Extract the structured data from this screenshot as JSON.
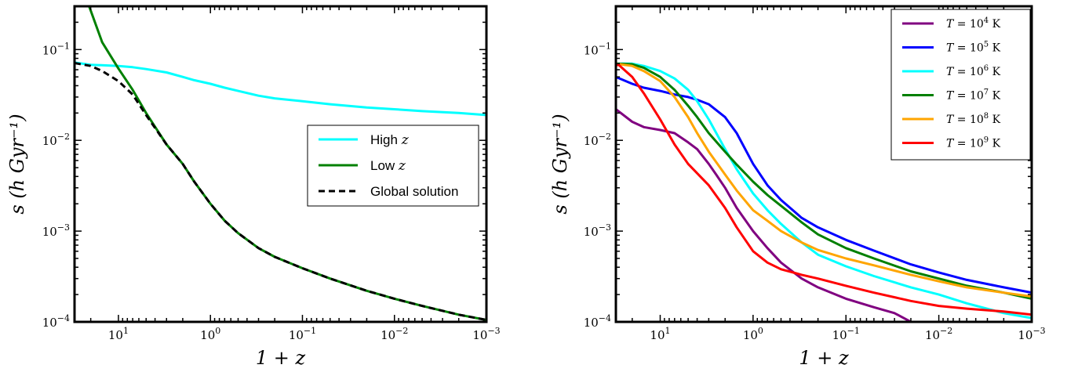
{
  "chart_data": [
    {
      "type": "line",
      "xlabel": "1 + z",
      "ylabel": "s (h Gyr⁻¹)",
      "x_scale": "log_reversed",
      "y_scale": "log",
      "xlim": [
        30,
        0.001
      ],
      "ylim": [
        0.0001,
        0.3
      ],
      "x_ticks": [
        {
          "value": 10,
          "base": "10",
          "exp": "1"
        },
        {
          "value": 1,
          "base": "10",
          "exp": "0"
        },
        {
          "value": 0.1,
          "base": "10",
          "exp": "−1"
        },
        {
          "value": 0.01,
          "base": "10",
          "exp": "−2"
        },
        {
          "value": 0.001,
          "base": "10",
          "exp": "−3"
        }
      ],
      "y_ticks": [
        {
          "value": 0.1,
          "base": "10",
          "exp": "−1"
        },
        {
          "value": 0.01,
          "base": "10",
          "exp": "−2"
        },
        {
          "value": 0.001,
          "base": "10",
          "exp": "−3"
        },
        {
          "value": 0.0001,
          "base": "10",
          "exp": "−4"
        }
      ],
      "legend_position": "center-right",
      "series": [
        {
          "name": "High z",
          "color": "#00ffff",
          "dash": "solid",
          "points": [
            [
              30,
              0.072
            ],
            [
              20,
              0.068
            ],
            [
              10,
              0.066
            ],
            [
              7,
              0.064
            ],
            [
              5,
              0.061
            ],
            [
              3,
              0.056
            ],
            [
              2,
              0.05
            ],
            [
              1.5,
              0.046
            ],
            [
              1,
              0.042
            ],
            [
              0.7,
              0.038
            ],
            [
              0.5,
              0.035
            ],
            [
              0.3,
              0.031
            ],
            [
              0.2,
              0.029
            ],
            [
              0.1,
              0.027
            ],
            [
              0.05,
              0.025
            ],
            [
              0.02,
              0.023
            ],
            [
              0.01,
              0.022
            ],
            [
              0.005,
              0.021
            ],
            [
              0.002,
              0.02
            ],
            [
              0.001,
              0.019
            ]
          ]
        },
        {
          "name": "Low z",
          "color": "#008000",
          "dash": "solid",
          "points": [
            [
              30,
              0.9
            ],
            [
              22,
              0.35
            ],
            [
              15,
              0.12
            ],
            [
              10,
              0.062
            ],
            [
              7,
              0.036
            ],
            [
              5,
              0.02
            ],
            [
              3,
              0.009
            ],
            [
              2,
              0.0055
            ],
            [
              1.5,
              0.0035
            ],
            [
              1,
              0.002
            ],
            [
              0.7,
              0.0013
            ],
            [
              0.5,
              0.00095
            ],
            [
              0.3,
              0.00065
            ],
            [
              0.2,
              0.00052
            ],
            [
              0.1,
              0.00039
            ],
            [
              0.05,
              0.0003
            ],
            [
              0.02,
              0.00022
            ],
            [
              0.01,
              0.00018
            ],
            [
              0.005,
              0.00015
            ],
            [
              0.002,
              0.00012
            ],
            [
              0.001,
              0.000105
            ]
          ]
        },
        {
          "name": "Global solution",
          "color": "#000000",
          "dash": "dashed",
          "points": [
            [
              30,
              0.071
            ],
            [
              20,
              0.066
            ],
            [
              15,
              0.058
            ],
            [
              10,
              0.045
            ],
            [
              7,
              0.032
            ],
            [
              5,
              0.019
            ],
            [
              3,
              0.009
            ],
            [
              2,
              0.0055
            ],
            [
              1.5,
              0.0035
            ],
            [
              1,
              0.002
            ],
            [
              0.7,
              0.0013
            ],
            [
              0.5,
              0.00095
            ],
            [
              0.3,
              0.00065
            ],
            [
              0.2,
              0.00052
            ],
            [
              0.1,
              0.00039
            ],
            [
              0.05,
              0.0003
            ],
            [
              0.02,
              0.00022
            ],
            [
              0.01,
              0.00018
            ],
            [
              0.005,
              0.00015
            ],
            [
              0.002,
              0.00012
            ],
            [
              0.001,
              0.000105
            ]
          ]
        }
      ]
    },
    {
      "type": "line",
      "xlabel": "1 + z",
      "ylabel": "s (h Gyr⁻¹)",
      "x_scale": "log_reversed",
      "y_scale": "log",
      "xlim": [
        30,
        0.001
      ],
      "ylim": [
        0.0001,
        0.3
      ],
      "x_ticks": [
        {
          "value": 10,
          "base": "10",
          "exp": "1"
        },
        {
          "value": 1,
          "base": "10",
          "exp": "0"
        },
        {
          "value": 0.1,
          "base": "10",
          "exp": "−1"
        },
        {
          "value": 0.01,
          "base": "10",
          "exp": "−2"
        },
        {
          "value": 0.001,
          "base": "10",
          "exp": "−3"
        }
      ],
      "y_ticks": [
        {
          "value": 0.1,
          "base": "10",
          "exp": "−1"
        },
        {
          "value": 0.01,
          "base": "10",
          "exp": "−2"
        },
        {
          "value": 0.001,
          "base": "10",
          "exp": "−3"
        },
        {
          "value": 0.0001,
          "base": "10",
          "exp": "−4"
        }
      ],
      "legend_position": "top-right",
      "series": [
        {
          "name": "T = 10⁴ K",
          "label_lhs": "T",
          "label_base": "10",
          "label_exp": "4",
          "label_unit": "K",
          "color": "#800080",
          "dash": "solid",
          "points": [
            [
              30,
              0.022
            ],
            [
              20,
              0.016
            ],
            [
              15,
              0.014
            ],
            [
              10,
              0.013
            ],
            [
              7,
              0.012
            ],
            [
              5,
              0.0095
            ],
            [
              4,
              0.008
            ],
            [
              3,
              0.0055
            ],
            [
              2.5,
              0.0042
            ],
            [
              2,
              0.003
            ],
            [
              1.5,
              0.0018
            ],
            [
              1,
              0.001
            ],
            [
              0.7,
              0.00065
            ],
            [
              0.5,
              0.00045
            ],
            [
              0.3,
              0.0003
            ],
            [
              0.2,
              0.00024
            ],
            [
              0.1,
              0.00018
            ],
            [
              0.05,
              0.000145
            ],
            [
              0.03,
              0.000125
            ],
            [
              0.02,
              0.0001
            ]
          ]
        },
        {
          "name": "T = 10⁵ K",
          "label_lhs": "T",
          "label_base": "10",
          "label_exp": "5",
          "label_unit": "K",
          "color": "#0000ff",
          "dash": "solid",
          "points": [
            [
              30,
              0.05
            ],
            [
              20,
              0.042
            ],
            [
              15,
              0.038
            ],
            [
              10,
              0.035
            ],
            [
              7,
              0.032
            ],
            [
              5,
              0.03
            ],
            [
              4,
              0.028
            ],
            [
              3,
              0.025
            ],
            [
              2,
              0.018
            ],
            [
              1.5,
              0.012
            ],
            [
              1,
              0.0055
            ],
            [
              0.7,
              0.0032
            ],
            [
              0.5,
              0.0022
            ],
            [
              0.3,
              0.0014
            ],
            [
              0.2,
              0.0011
            ],
            [
              0.1,
              0.0008
            ],
            [
              0.05,
              0.00061
            ],
            [
              0.02,
              0.00043
            ],
            [
              0.01,
              0.00035
            ],
            [
              0.005,
              0.00029
            ],
            [
              0.002,
              0.00024
            ],
            [
              0.001,
              0.00021
            ]
          ]
        },
        {
          "name": "T = 10⁶ K",
          "label_lhs": "T",
          "label_base": "10",
          "label_exp": "6",
          "label_unit": "K",
          "color": "#00ffff",
          "dash": "solid",
          "points": [
            [
              30,
              0.07
            ],
            [
              20,
              0.07
            ],
            [
              15,
              0.066
            ],
            [
              10,
              0.058
            ],
            [
              7,
              0.048
            ],
            [
              5,
              0.036
            ],
            [
              4,
              0.027
            ],
            [
              3,
              0.017
            ],
            [
              2,
              0.008
            ],
            [
              1.5,
              0.0048
            ],
            [
              1,
              0.0026
            ],
            [
              0.7,
              0.0017
            ],
            [
              0.5,
              0.0012
            ],
            [
              0.3,
              0.00075
            ],
            [
              0.2,
              0.00055
            ],
            [
              0.1,
              0.00041
            ],
            [
              0.05,
              0.00032
            ],
            [
              0.02,
              0.00024
            ],
            [
              0.01,
              0.0002
            ],
            [
              0.005,
              0.00016
            ],
            [
              0.002,
              0.000125
            ],
            [
              0.001,
              0.00011
            ]
          ]
        },
        {
          "name": "T = 10⁷ K",
          "label_lhs": "T",
          "label_base": "10",
          "label_exp": "7",
          "label_unit": "K",
          "color": "#007f00",
          "dash": "solid",
          "points": [
            [
              30,
              0.07
            ],
            [
              20,
              0.069
            ],
            [
              15,
              0.063
            ],
            [
              10,
              0.05
            ],
            [
              7,
              0.036
            ],
            [
              5,
              0.024
            ],
            [
              4,
              0.018
            ],
            [
              3,
              0.012
            ],
            [
              2,
              0.0075
            ],
            [
              1.5,
              0.0054
            ],
            [
              1,
              0.0035
            ],
            [
              0.7,
              0.0025
            ],
            [
              0.5,
              0.0019
            ],
            [
              0.3,
              0.00125
            ],
            [
              0.2,
              0.00092
            ],
            [
              0.1,
              0.00065
            ],
            [
              0.05,
              0.0005
            ],
            [
              0.02,
              0.00036
            ],
            [
              0.01,
              0.0003
            ],
            [
              0.005,
              0.00025
            ],
            [
              0.002,
              0.00021
            ],
            [
              0.001,
              0.00018
            ]
          ]
        },
        {
          "name": "T = 10⁸ K",
          "label_lhs": "T",
          "label_base": "10",
          "label_exp": "8",
          "label_unit": "K",
          "color": "#ffa500",
          "dash": "solid",
          "points": [
            [
              30,
              0.07
            ],
            [
              20,
              0.066
            ],
            [
              15,
              0.058
            ],
            [
              10,
              0.045
            ],
            [
              7,
              0.03
            ],
            [
              5,
              0.018
            ],
            [
              4,
              0.012
            ],
            [
              3,
              0.0075
            ],
            [
              2,
              0.0042
            ],
            [
              1.5,
              0.0028
            ],
            [
              1,
              0.0017
            ],
            [
              0.7,
              0.0013
            ],
            [
              0.5,
              0.001
            ],
            [
              0.3,
              0.00075
            ],
            [
              0.2,
              0.00062
            ],
            [
              0.1,
              0.0005
            ],
            [
              0.05,
              0.00042
            ],
            [
              0.02,
              0.00033
            ],
            [
              0.01,
              0.00028
            ],
            [
              0.005,
              0.00024
            ],
            [
              0.002,
              0.00021
            ],
            [
              0.001,
              0.00019
            ]
          ]
        },
        {
          "name": "T = 10⁹ K",
          "label_lhs": "T",
          "label_base": "10",
          "label_exp": "9",
          "label_unit": "K",
          "color": "#ff0000",
          "dash": "solid",
          "points": [
            [
              30,
              0.067
            ],
            [
              28,
              0.068
            ],
            [
              20,
              0.05
            ],
            [
              15,
              0.033
            ],
            [
              10,
              0.017
            ],
            [
              7,
              0.009
            ],
            [
              5,
              0.0055
            ],
            [
              3,
              0.0032
            ],
            [
              2,
              0.0018
            ],
            [
              1.5,
              0.0011
            ],
            [
              1,
              0.0006
            ],
            [
              0.7,
              0.00045
            ],
            [
              0.5,
              0.00038
            ],
            [
              0.3,
              0.00033
            ],
            [
              0.2,
              0.0003
            ],
            [
              0.1,
              0.00025
            ],
            [
              0.05,
              0.00021
            ],
            [
              0.02,
              0.00017
            ],
            [
              0.01,
              0.00015
            ],
            [
              0.005,
              0.00014
            ],
            [
              0.002,
              0.00013
            ],
            [
              0.001,
              0.00012
            ]
          ]
        }
      ]
    }
  ]
}
